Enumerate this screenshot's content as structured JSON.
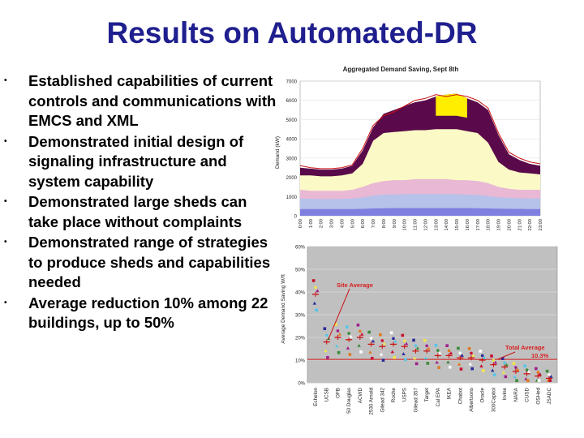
{
  "slide": {
    "title": "Results on Automated-DR",
    "bullets": [
      "Established capabilities of current controls and communications with EMCS and XML",
      "Demonstrated initial design of signaling infrastructure and system capability",
      "Demonstrated large sheds can take place without complaints",
      "Demonstrated range of strategies to produce sheds and capabilities needed",
      "Average reduction 10% among 22 buildings, up to 50%"
    ]
  },
  "chart_data": [
    {
      "type": "area",
      "title": "Aggregated Demand Saving, Sept 8th",
      "ylabel": "Demand (kW)",
      "ylim": [
        0,
        7000
      ],
      "yticks": [
        "0",
        "1000",
        "2000",
        "3000",
        "4000",
        "5000",
        "6000",
        "7000"
      ],
      "x": [
        "0:00",
        "1:00",
        "2:00",
        "3:00",
        "4:00",
        "5:00",
        "6:00",
        "7:00",
        "8:00",
        "9:00",
        "10:00",
        "11:00",
        "12:00",
        "13:00",
        "14:00",
        "15:00",
        "16:00",
        "17:00",
        "18:00",
        "19:00",
        "20:00",
        "21:00",
        "22:00",
        "23:00"
      ],
      "series": [
        {
          "values": [
            2500,
            2450,
            2400,
            2400,
            2450,
            2600,
            3400,
            4600,
            5300,
            5500,
            5700,
            5900,
            6000,
            6200,
            6300,
            6350,
            6100,
            5900,
            5500,
            4200,
            3200,
            2900,
            2700,
            2600
          ]
        },
        {
          "values": [
            2100,
            2100,
            2050,
            2050,
            2100,
            2200,
            2700,
            3900,
            4300,
            4350,
            4400,
            4450,
            4450,
            4500,
            4500,
            4500,
            4400,
            4300,
            3800,
            2800,
            2400,
            2250,
            2200,
            2150
          ]
        },
        {
          "values": [
            1350,
            1300,
            1300,
            1300,
            1300,
            1350,
            1500,
            1700,
            1800,
            1850,
            1850,
            1900,
            1900,
            1900,
            1900,
            1850,
            1850,
            1800,
            1700,
            1500,
            1400,
            1350,
            1350,
            1350
          ]
        },
        {
          "values": [
            900,
            880,
            870,
            870,
            880,
            900,
            950,
            1050,
            1100,
            1100,
            1120,
            1130,
            1130,
            1130,
            1120,
            1120,
            1100,
            1080,
            1020,
            960,
            930,
            910,
            900,
            900
          ]
        },
        {
          "values": [
            350,
            350,
            350,
            350,
            350,
            350,
            360,
            380,
            390,
            400,
            400,
            400,
            400,
            400,
            400,
            400,
            400,
            390,
            380,
            370,
            360,
            360,
            350,
            350
          ]
        },
        {
          "values": [
            2600,
            2500,
            2450,
            2450,
            2500,
            2650,
            3500,
            4700,
            5200,
            5400,
            5700,
            6000,
            6100,
            6300,
            6200,
            6300,
            6200,
            6000,
            5600,
            4300,
            3300,
            3000,
            2800,
            2700
          ]
        }
      ]
    },
    {
      "type": "scatter",
      "ylabel": "Average Demand Saving W/ft",
      "ylim": [
        0,
        0.6
      ],
      "yticks": [
        "0%",
        "10%",
        "20%",
        "30%",
        "40%",
        "50%",
        "60%"
      ],
      "categories": [
        "Echelon",
        "UCSB",
        "OFB",
        "50 Douglas",
        "ACWD",
        "2530 Arnold",
        "Gilead 342",
        "Roche",
        "USPS",
        "Gilead 357",
        "Target",
        "Cal EPA",
        "IKEA",
        "Chabot",
        "Albertsons",
        "Oracle",
        "300Capitol",
        "Irvine",
        "NARA",
        "CUSD",
        "OSHed",
        "JSADC"
      ],
      "values": [
        0.39,
        0.18,
        0.2,
        0.19,
        0.2,
        0.17,
        0.16,
        0.17,
        0.16,
        0.14,
        0.14,
        0.12,
        0.12,
        0.11,
        0.11,
        0.1,
        0.08,
        0.07,
        0.05,
        0.04,
        0.03,
        0.02
      ],
      "annotations": {
        "site_average": "Site Average",
        "total_average_label": "Total Average",
        "total_average_value": "10.3%"
      },
      "total_average": 0.103
    }
  ]
}
